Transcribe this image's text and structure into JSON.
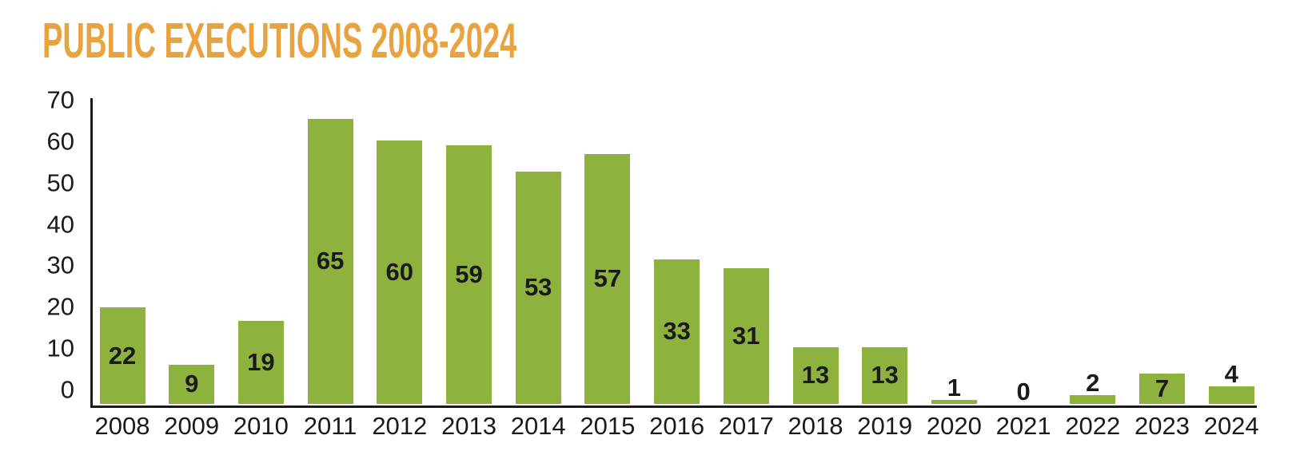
{
  "title": "PUBLIC EXECUTIONS 2008-2024",
  "colors": {
    "title_orange": "#E8A33F",
    "bar_green": "#8DB23E",
    "text_dark": "#1A1A1A",
    "axis_black": "#1A1A1A",
    "background": "#FFFFFF"
  },
  "chart_data": {
    "type": "bar",
    "title": "PUBLIC EXECUTIONS 2008-2024",
    "categories": [
      "2008",
      "2009",
      "2010",
      "2011",
      "2012",
      "2013",
      "2014",
      "2015",
      "2016",
      "2017",
      "2018",
      "2019",
      "2020",
      "2021",
      "2022",
      "2023",
      "2024"
    ],
    "values": [
      22,
      9,
      19,
      65,
      60,
      59,
      53,
      57,
      33,
      31,
      13,
      13,
      1,
      0,
      2,
      7,
      4
    ],
    "value_labels": [
      "22",
      "9",
      "19",
      "65",
      "60",
      "59",
      "53",
      "57",
      "33",
      "31",
      "13",
      "13",
      "1",
      "0",
      "2",
      "7",
      "4"
    ],
    "xlabel": "",
    "ylabel": "",
    "ylim": [
      0,
      70
    ],
    "yticks": [
      0,
      10,
      20,
      30,
      40,
      50,
      60,
      70
    ],
    "grid": false,
    "legend": null,
    "bar_color": "#8DB23E",
    "value_label_position_rule": "inside bar when bar is tall enough, otherwise above bar"
  }
}
